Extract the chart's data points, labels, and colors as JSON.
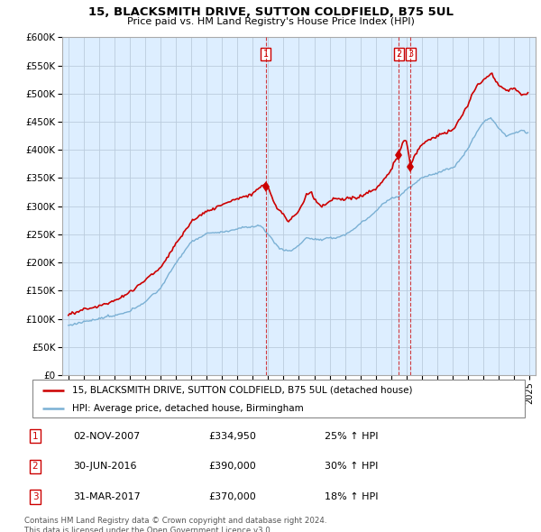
{
  "title": "15, BLACKSMITH DRIVE, SUTTON COLDFIELD, B75 5UL",
  "subtitle": "Price paid vs. HM Land Registry's House Price Index (HPI)",
  "legend_line1": "15, BLACKSMITH DRIVE, SUTTON COLDFIELD, B75 5UL (detached house)",
  "legend_line2": "HPI: Average price, detached house, Birmingham",
  "footnote": "Contains HM Land Registry data © Crown copyright and database right 2024.\nThis data is licensed under the Open Government Licence v3.0.",
  "transactions": [
    {
      "label": "1",
      "date": "02-NOV-2007",
      "price": 334950,
      "hpi_pct": "25% ↑ HPI",
      "year": 2007.84
    },
    {
      "label": "2",
      "date": "30-JUN-2016",
      "price": 390000,
      "hpi_pct": "30% ↑ HPI",
      "year": 2016.5
    },
    {
      "label": "3",
      "date": "31-MAR-2017",
      "price": 370000,
      "hpi_pct": "18% ↑ HPI",
      "year": 2017.25
    }
  ],
  "red_color": "#cc0000",
  "blue_color": "#7ab0d4",
  "bg_color": "#ddeeff",
  "grid_color": "#bbccdd",
  "ylim": [
    0,
    600000
  ],
  "yticks": [
    0,
    50000,
    100000,
    150000,
    200000,
    250000,
    300000,
    350000,
    400000,
    450000,
    500000,
    550000,
    600000
  ],
  "ytick_labels": [
    "£0",
    "£50K",
    "£100K",
    "£150K",
    "£200K",
    "£250K",
    "£300K",
    "£350K",
    "£400K",
    "£450K",
    "£500K",
    "£550K",
    "£600K"
  ],
  "xlim_start": 1994.6,
  "xlim_end": 2025.4,
  "xtick_years": [
    1995,
    1996,
    1997,
    1998,
    1999,
    2000,
    2001,
    2002,
    2003,
    2004,
    2005,
    2006,
    2007,
    2008,
    2009,
    2010,
    2011,
    2012,
    2013,
    2014,
    2015,
    2016,
    2017,
    2018,
    2019,
    2020,
    2021,
    2022,
    2023,
    2024,
    2025
  ]
}
